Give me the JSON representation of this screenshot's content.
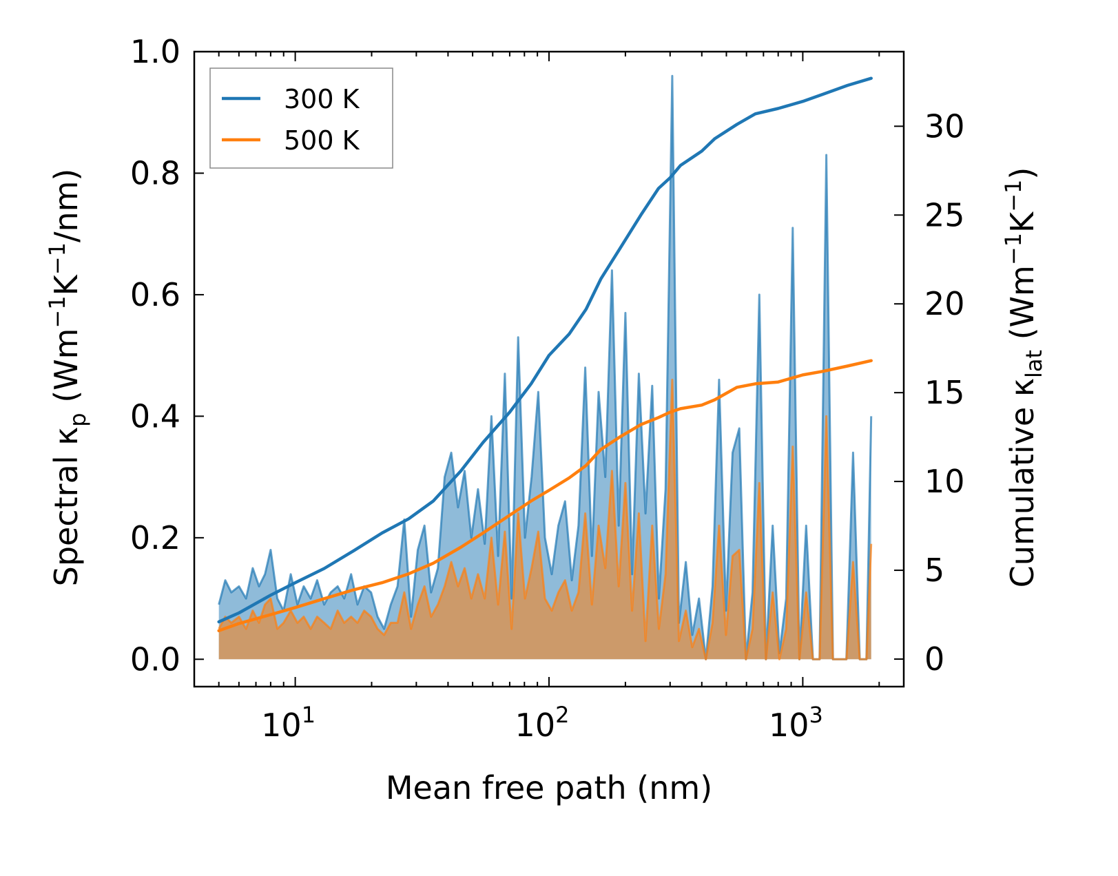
{
  "chart_data": {
    "type": "line",
    "xscale": "log",
    "xlim": [
      4.0,
      2500
    ],
    "xlabel": "Mean free path (nm)",
    "x_tick_labels": [
      {
        "value": 10,
        "base": "10",
        "exp": "1"
      },
      {
        "value": 100,
        "base": "10",
        "exp": "2"
      },
      {
        "value": 1000,
        "base": "10",
        "exp": "3"
      }
    ],
    "y_left": {
      "label_parts": {
        "prefix": "Spectral κ",
        "sub": "p",
        "unit_open": " (Wm",
        "sup1": "−1",
        "unit_mid": "K",
        "sup2": "−1",
        "unit_close": "/nm)"
      },
      "ylim": [
        -0.045,
        1.0
      ],
      "ticks": [
        0.0,
        0.2,
        0.4,
        0.6,
        0.8,
        1.0
      ],
      "tick_labels": [
        "0.0",
        "0.2",
        "0.4",
        "0.6",
        "0.8",
        "1.0"
      ]
    },
    "y_right": {
      "label_parts": {
        "prefix": "Cumulative κ",
        "sub": "lat",
        "unit_open": " (Wm",
        "sup1": "−1",
        "unit_mid": "K",
        "sup2": "−1",
        "unit_close": ")"
      },
      "ylim": [
        -1.55,
        34.2
      ],
      "ticks": [
        0,
        5,
        10,
        15,
        20,
        25,
        30
      ],
      "tick_labels": [
        "0",
        "5",
        "10",
        "15",
        "20",
        "25",
        "30"
      ]
    },
    "legend": {
      "position": "top-left",
      "entries": [
        {
          "label": "300 K",
          "color": "#1f77b4"
        },
        {
          "label": "500 K",
          "color": "#ff7f0e"
        }
      ]
    },
    "series": [
      {
        "name": "300 K",
        "color": "#1f77b4",
        "fill_color": "#1f77b4",
        "spectral": {
          "x": [
            5,
            5.3,
            5.6,
            6,
            6.4,
            6.8,
            7.2,
            7.6,
            8,
            8.5,
            9,
            9.6,
            10.2,
            10.8,
            11.5,
            12.2,
            13,
            13.8,
            14.7,
            15.6,
            16.6,
            17.6,
            18.7,
            19.9,
            21.1,
            22.4,
            23.8,
            25.3,
            26.9,
            28.6,
            30.4,
            32.3,
            34.3,
            36.5,
            38.8,
            41.2,
            43.8,
            46.5,
            49.4,
            52.5,
            55.8,
            59.3,
            63,
            67,
            71.2,
            75.6,
            80.4,
            85.4,
            90.7,
            96.4,
            102.5,
            108.9,
            115.7,
            123,
            130.7,
            138.9,
            147.6,
            156.8,
            166.6,
            177.1,
            188.2,
            200,
            212.5,
            225.9,
            240,
            255,
            271,
            288,
            306,
            325,
            346,
            367,
            390,
            415,
            441,
            468,
            498,
            529,
            562,
            597,
            634,
            674,
            716,
            761,
            809,
            860,
            913,
            970,
            1031,
            1096,
            1165,
            1238,
            1315,
            1398,
            1485,
            1578,
            1677,
            1782,
            1860
          ],
          "y": [
            0.09,
            0.13,
            0.11,
            0.12,
            0.1,
            0.15,
            0.12,
            0.14,
            0.18,
            0.1,
            0.08,
            0.14,
            0.09,
            0.12,
            0.1,
            0.13,
            0.09,
            0.11,
            0.12,
            0.1,
            0.14,
            0.09,
            0.12,
            0.11,
            0.07,
            0.05,
            0.09,
            0.12,
            0.23,
            0.07,
            0.18,
            0.22,
            0.11,
            0.15,
            0.3,
            0.34,
            0.25,
            0.31,
            0.2,
            0.28,
            0.19,
            0.4,
            0.17,
            0.47,
            0.1,
            0.53,
            0.2,
            0.3,
            0.44,
            0.2,
            0.14,
            0.22,
            0.26,
            0.13,
            0.22,
            0.48,
            0.17,
            0.44,
            0.3,
            0.64,
            0.22,
            0.57,
            0.14,
            0.47,
            0.24,
            0.45,
            0.1,
            0.28,
            0.96,
            0.06,
            0.16,
            0.04,
            0.1,
            0.0,
            0.12,
            0.46,
            0.08,
            0.34,
            0.38,
            0.0,
            0.11,
            0.6,
            0.0,
            0.22,
            0.01,
            0.1,
            0.71,
            0.0,
            0.22,
            0.0,
            0.0,
            0.83,
            0.0,
            0.0,
            0.0,
            0.34,
            0.0,
            0.0,
            0.4
          ]
        },
        "cumulative": {
          "x": [
            5,
            6,
            8,
            10,
            13,
            17,
            22,
            28,
            35,
            45,
            55,
            70,
            85,
            100,
            120,
            140,
            160,
            190,
            230,
            270,
            300,
            330,
            400,
            450,
            550,
            650,
            800,
            1000,
            1200,
            1500,
            1860
          ],
          "y": [
            2.1,
            2.6,
            3.6,
            4.3,
            5.1,
            6.1,
            7.1,
            7.9,
            8.9,
            10.6,
            12.2,
            13.9,
            15.5,
            17.1,
            18.3,
            19.7,
            21.4,
            23.1,
            25.0,
            26.5,
            27.1,
            27.8,
            28.6,
            29.3,
            30.1,
            30.7,
            31.0,
            31.4,
            31.8,
            32.3,
            32.7
          ]
        }
      },
      {
        "name": "500 K",
        "color": "#ff7f0e",
        "fill_color": "#ff7f0e",
        "spectral": {
          "x": [
            5,
            5.3,
            5.6,
            6,
            6.4,
            6.8,
            7.2,
            7.6,
            8,
            8.5,
            9,
            9.6,
            10.2,
            10.8,
            11.5,
            12.2,
            13,
            13.8,
            14.7,
            15.6,
            16.6,
            17.6,
            18.7,
            19.9,
            21.1,
            22.4,
            23.8,
            25.3,
            26.9,
            28.6,
            30.4,
            32.3,
            34.3,
            36.5,
            38.8,
            41.2,
            43.8,
            46.5,
            49.4,
            52.5,
            55.8,
            59.3,
            63,
            67,
            71.2,
            75.6,
            80.4,
            85.4,
            90.7,
            96.4,
            102.5,
            108.9,
            115.7,
            123,
            130.7,
            138.9,
            147.6,
            156.8,
            166.6,
            177.1,
            188.2,
            200,
            212.5,
            225.9,
            240,
            255,
            271,
            288,
            306,
            325,
            346,
            367,
            390,
            415,
            441,
            468,
            498,
            529,
            562,
            597,
            634,
            674,
            716,
            761,
            809,
            860,
            913,
            970,
            1031,
            1096,
            1165,
            1238,
            1315,
            1398,
            1485,
            1578,
            1677,
            1782,
            1860
          ],
          "y": [
            0.05,
            0.07,
            0.06,
            0.07,
            0.05,
            0.08,
            0.06,
            0.09,
            0.1,
            0.05,
            0.06,
            0.08,
            0.06,
            0.07,
            0.05,
            0.07,
            0.06,
            0.05,
            0.08,
            0.06,
            0.07,
            0.06,
            0.08,
            0.07,
            0.05,
            0.04,
            0.06,
            0.06,
            0.11,
            0.05,
            0.09,
            0.12,
            0.07,
            0.09,
            0.12,
            0.16,
            0.12,
            0.15,
            0.1,
            0.14,
            0.1,
            0.2,
            0.09,
            0.21,
            0.05,
            0.24,
            0.1,
            0.15,
            0.21,
            0.1,
            0.08,
            0.11,
            0.13,
            0.08,
            0.11,
            0.24,
            0.09,
            0.22,
            0.15,
            0.31,
            0.12,
            0.29,
            0.08,
            0.24,
            0.03,
            0.22,
            0.05,
            0.14,
            0.46,
            0.03,
            0.08,
            0.02,
            0.05,
            0.0,
            0.06,
            0.22,
            0.04,
            0.17,
            0.18,
            0.0,
            0.05,
            0.29,
            0.0,
            0.11,
            0.0,
            0.05,
            0.35,
            0.0,
            0.11,
            0.0,
            0.0,
            0.4,
            0.0,
            0.0,
            0.0,
            0.16,
            0.0,
            0.0,
            0.19
          ]
        },
        "cumulative": {
          "x": [
            5,
            6,
            8,
            10,
            13,
            17,
            22,
            28,
            35,
            45,
            55,
            70,
            85,
            100,
            120,
            140,
            160,
            190,
            230,
            270,
            300,
            330,
            400,
            450,
            550,
            650,
            800,
            1000,
            1200,
            1500,
            1860
          ],
          "y": [
            1.6,
            2.0,
            2.5,
            2.9,
            3.4,
            3.9,
            4.3,
            4.8,
            5.4,
            6.3,
            7.1,
            8.1,
            8.9,
            9.5,
            10.2,
            10.9,
            11.8,
            12.5,
            13.2,
            13.6,
            13.9,
            14.1,
            14.3,
            14.6,
            15.3,
            15.5,
            15.6,
            16.0,
            16.2,
            16.5,
            16.8
          ]
        }
      }
    ]
  }
}
